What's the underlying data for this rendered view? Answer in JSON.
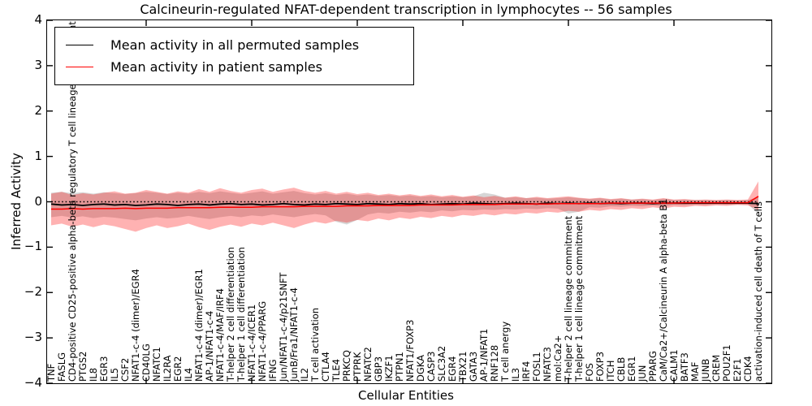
{
  "title": "Calcineurin-regulated NFAT-dependent transcription in lymphocytes -- 56 samples",
  "legend": {
    "items": [
      {
        "label": "Mean activity in all permuted samples",
        "color": "#000000"
      },
      {
        "label": "Mean activity in patient samples",
        "color": "#ff0000"
      }
    ]
  },
  "axes": {
    "x": {
      "label": "Cellular Entities"
    },
    "y": {
      "label": "Inferred Activity",
      "ticks": [
        "4",
        "3",
        "2",
        "1",
        "0",
        "−1",
        "−2",
        "−3",
        "−4"
      ],
      "tick_values": [
        4,
        3,
        2,
        1,
        0,
        -1,
        -2,
        -3,
        -4
      ]
    }
  },
  "colors": {
    "permuted_line": "#000000",
    "patient_line": "#ff0000",
    "permuted_band": "rgba(120,120,120,0.30)",
    "patient_band": "rgba(255,0,0,0.30)",
    "zero_line": "#000000"
  },
  "chart_data": {
    "type": "line",
    "title": "Calcineurin-regulated NFAT-dependent transcription in lymphocytes -- 56 samples",
    "xlabel": "Cellular Entities",
    "ylabel": "Inferred Activity",
    "ylim": [
      -4,
      4
    ],
    "grid": false,
    "legend_position": "upper left",
    "zero_reference_line": 0,
    "categories": [
      "TNF",
      "FASLG",
      "CD4-positive CD25-positive alpha-beta regulatory T cell lineage commitment",
      "PTGS2",
      "IL8",
      "EGR3",
      "IL5",
      "CSF2",
      "NFAT1-c-4 (dimer)/EGR4",
      "CD40LG",
      "NFATC1",
      "IL2RA",
      "EGR2",
      "IL4",
      "NFAT1-c-4 (dimer)/EGR1",
      "AP-1/NFAT1-c-4",
      "NFAT1-c-4/MAF/IRF4",
      "T-helper 2 cell differentiation",
      "T-helper 1 cell differentiation",
      "NFAT1-c-4/ICER1",
      "NFAT1-c-4/PPARG",
      "IFNG",
      "Jun/NFAT1-c-4/p21SNFT",
      "JunB/Fra1/NFAT1-c-4",
      "IL2",
      "T cell activation",
      "CTLA4",
      "TLE4",
      "PRKCQ",
      "PTPRK",
      "NFATC2",
      "GBP3",
      "IKZF1",
      "PTPN1",
      "NFAT1/FOXP3",
      "DGKA",
      "CASP3",
      "SLC3A2",
      "EGR4",
      "TBX21",
      "GATA3",
      "AP-1/NFAT1",
      "RNF128",
      "T cell anergy",
      "IL3",
      "IRF4",
      "FOSL1",
      "NFATC3",
      "mol:Ca2+",
      "T-helper 2 cell lineage commitment",
      "T-helper 1 cell lineage commitment",
      "FOS",
      "FOXP3",
      "ITCH",
      "CBLB",
      "EGR1",
      "JUN",
      "PPARG",
      "CaM/Ca2+/Calcineurin A alpha-beta B1",
      "CALM1",
      "BATF3",
      "MAF",
      "JUNB",
      "CREM",
      "POU2F1",
      "E2F1",
      "CDK4",
      "activation-induced cell death of T cells"
    ],
    "series": [
      {
        "name": "Mean activity in all permuted samples",
        "color": "#000000",
        "values": [
          -0.05,
          -0.07,
          -0.06,
          -0.08,
          -0.06,
          -0.05,
          -0.07,
          -0.06,
          -0.08,
          -0.07,
          -0.05,
          -0.06,
          -0.08,
          -0.06,
          -0.05,
          -0.07,
          -0.05,
          -0.04,
          -0.06,
          -0.05,
          -0.07,
          -0.06,
          -0.04,
          -0.06,
          -0.07,
          -0.05,
          -0.06,
          -0.04,
          -0.05,
          -0.06,
          -0.04,
          -0.05,
          -0.06,
          -0.04,
          -0.05,
          -0.04,
          -0.06,
          -0.05,
          -0.04,
          -0.05,
          -0.03,
          -0.04,
          -0.05,
          -0.04,
          -0.03,
          -0.04,
          -0.05,
          -0.03,
          -0.04,
          -0.03,
          -0.04,
          -0.03,
          -0.04,
          -0.03,
          -0.04,
          -0.03,
          -0.03,
          -0.04,
          -0.03,
          -0.03,
          -0.03,
          -0.03,
          -0.03,
          -0.03,
          -0.03,
          -0.03,
          -0.03,
          -0.04
        ]
      },
      {
        "name": "Mean activity in patient samples",
        "color": "#ff0000",
        "values": [
          -0.16,
          -0.16,
          -0.15,
          -0.16,
          -0.15,
          -0.15,
          -0.15,
          -0.14,
          -0.15,
          -0.14,
          -0.14,
          -0.14,
          -0.13,
          -0.13,
          -0.13,
          -0.13,
          -0.12,
          -0.12,
          -0.12,
          -0.12,
          -0.11,
          -0.11,
          -0.11,
          -0.11,
          -0.1,
          -0.1,
          -0.1,
          -0.1,
          -0.09,
          -0.09,
          -0.09,
          -0.08,
          -0.08,
          -0.08,
          -0.08,
          -0.07,
          -0.07,
          -0.07,
          -0.07,
          -0.06,
          -0.06,
          -0.06,
          -0.06,
          -0.05,
          -0.05,
          -0.05,
          -0.05,
          -0.05,
          -0.04,
          -0.04,
          -0.04,
          -0.04,
          -0.04,
          -0.03,
          -0.03,
          -0.03,
          -0.03,
          -0.03,
          -0.03,
          -0.03,
          -0.02,
          -0.02,
          -0.02,
          -0.02,
          -0.02,
          -0.02,
          -0.02,
          0.12
        ]
      }
    ],
    "bands": [
      {
        "name": "permuted-samples-std-band",
        "color": "rgba(120,120,120,0.30)",
        "upper": [
          0.2,
          0.22,
          0.19,
          0.21,
          0.18,
          0.21,
          0.19,
          0.17,
          0.19,
          0.22,
          0.2,
          0.17,
          0.2,
          0.18,
          0.22,
          0.19,
          0.23,
          0.2,
          0.17,
          0.2,
          0.23,
          0.18,
          0.21,
          0.24,
          0.19,
          0.16,
          0.19,
          0.15,
          0.18,
          0.14,
          0.16,
          0.13,
          0.15,
          0.12,
          0.14,
          0.11,
          0.13,
          0.1,
          0.12,
          0.1,
          0.12,
          0.2,
          0.16,
          0.09,
          0.1,
          0.08,
          0.09,
          0.07,
          0.08,
          0.1,
          0.08,
          0.06,
          0.08,
          0.05,
          0.07,
          0.05,
          0.06,
          0.04,
          0.07,
          0.04,
          0.05,
          0.04,
          0.04,
          0.03,
          0.04,
          0.03,
          0.04,
          0.1
        ],
        "lower": [
          -0.34,
          -0.31,
          -0.35,
          -0.32,
          -0.36,
          -0.33,
          -0.35,
          -0.38,
          -0.41,
          -0.37,
          -0.34,
          -0.37,
          -0.35,
          -0.31,
          -0.35,
          -0.38,
          -0.34,
          -0.31,
          -0.34,
          -0.3,
          -0.32,
          -0.28,
          -0.31,
          -0.34,
          -0.3,
          -0.27,
          -0.3,
          -0.44,
          -0.5,
          -0.4,
          -0.28,
          -0.24,
          -0.26,
          -0.22,
          -0.24,
          -0.21,
          -0.23,
          -0.19,
          -0.21,
          -0.18,
          -0.19,
          -0.17,
          -0.18,
          -0.16,
          -0.17,
          -0.15,
          -0.16,
          -0.14,
          -0.15,
          -0.26,
          -0.22,
          -0.12,
          -0.13,
          -0.1,
          -0.11,
          -0.09,
          -0.1,
          -0.08,
          -0.1,
          -0.07,
          -0.08,
          -0.06,
          -0.07,
          -0.05,
          -0.06,
          -0.05,
          -0.05,
          -0.27
        ]
      },
      {
        "name": "patient-samples-std-band",
        "color": "rgba(255,0,0,0.30)",
        "upper": [
          0.18,
          0.22,
          0.15,
          0.19,
          0.16,
          0.2,
          0.23,
          0.18,
          0.2,
          0.26,
          0.22,
          0.18,
          0.23,
          0.2,
          0.28,
          0.22,
          0.3,
          0.24,
          0.2,
          0.26,
          0.29,
          0.22,
          0.27,
          0.31,
          0.24,
          0.2,
          0.24,
          0.18,
          0.22,
          0.17,
          0.2,
          0.15,
          0.18,
          0.14,
          0.17,
          0.13,
          0.16,
          0.12,
          0.15,
          0.11,
          0.14,
          0.1,
          0.13,
          0.09,
          0.12,
          0.08,
          0.11,
          0.08,
          0.1,
          0.12,
          0.09,
          0.07,
          0.09,
          0.06,
          0.08,
          0.05,
          0.07,
          0.05,
          0.08,
          0.05,
          0.06,
          0.04,
          0.05,
          0.04,
          0.05,
          0.04,
          0.05,
          0.45
        ],
        "lower": [
          -0.52,
          -0.48,
          -0.55,
          -0.5,
          -0.56,
          -0.5,
          -0.54,
          -0.6,
          -0.66,
          -0.58,
          -0.52,
          -0.58,
          -0.54,
          -0.48,
          -0.56,
          -0.62,
          -0.55,
          -0.5,
          -0.55,
          -0.48,
          -0.52,
          -0.46,
          -0.52,
          -0.58,
          -0.5,
          -0.44,
          -0.48,
          -0.42,
          -0.46,
          -0.4,
          -0.43,
          -0.37,
          -0.41,
          -0.35,
          -0.38,
          -0.33,
          -0.36,
          -0.31,
          -0.34,
          -0.29,
          -0.31,
          -0.27,
          -0.3,
          -0.26,
          -0.28,
          -0.24,
          -0.26,
          -0.22,
          -0.24,
          -0.2,
          -0.22,
          -0.18,
          -0.2,
          -0.16,
          -0.18,
          -0.14,
          -0.16,
          -0.12,
          -0.15,
          -0.11,
          -0.12,
          -0.09,
          -0.1,
          -0.08,
          -0.09,
          -0.07,
          -0.08,
          -0.18
        ]
      }
    ]
  }
}
